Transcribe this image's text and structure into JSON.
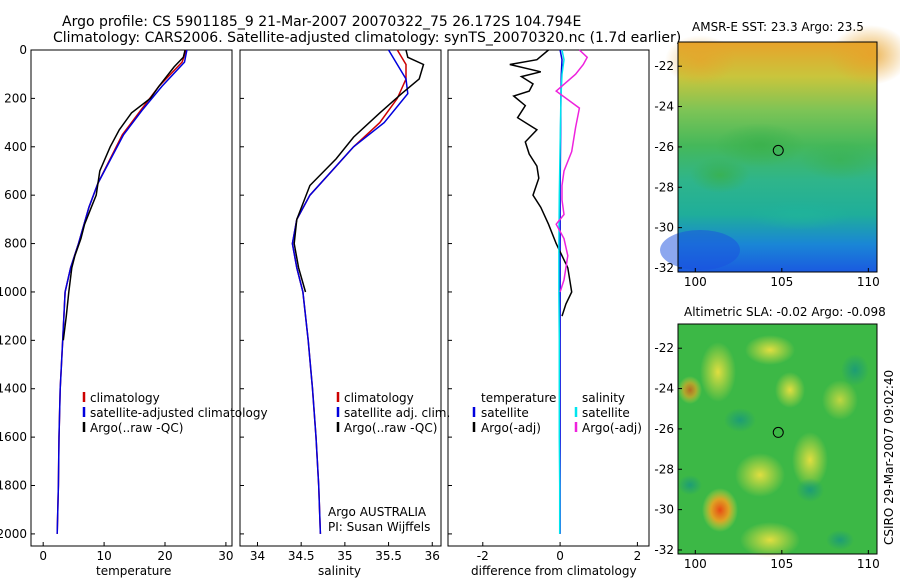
{
  "header": {
    "title_line1": "Argo profile: CS 5901185_9 21-Mar-2007 20070322_75 26.172S 104.794E",
    "title_line2": "Climatology: CARS2006. Satellite-adjusted climatology: synTS_20070320.nc (1.7d earlier)"
  },
  "credit": "CSIRO 29-Mar-2007 09:02:40",
  "colors": {
    "black": "#000000",
    "red": "#cc0000",
    "blue": "#0000dd",
    "cyan": "#00e5ee",
    "magenta": "#ee22dd"
  },
  "chart_data": [
    {
      "type": "line",
      "xlabel": "temperature",
      "xlim": [
        -2,
        31
      ],
      "ylim": [
        2050,
        0
      ],
      "xticks": [
        0,
        10,
        20,
        30
      ],
      "yticks": [
        0,
        200,
        400,
        600,
        800,
        1000,
        1200,
        1400,
        1600,
        1800,
        2000
      ],
      "legend": [
        "climatology",
        "satellite-adjusted climatology",
        "Argo(..raw -QC)"
      ],
      "series": [
        {
          "name": "climatology",
          "color": "#cc0000",
          "x": [
            23.5,
            22.8,
            19,
            16,
            13,
            11,
            9,
            7.5,
            5.8,
            4.5,
            3.6,
            3.2,
            2.8,
            2.6,
            2.5,
            2.3
          ],
          "y": [
            0,
            50,
            150,
            250,
            350,
            450,
            550,
            650,
            800,
            900,
            1000,
            1200,
            1400,
            1600,
            1800,
            2000
          ]
        },
        {
          "name": "satellite-adjusted climatology",
          "color": "#0000dd",
          "x": [
            23.6,
            23.2,
            19.5,
            16.2,
            13.2,
            11.1,
            9,
            7.5,
            5.8,
            4.5,
            3.6,
            3.2,
            2.8,
            2.6,
            2.5,
            2.3
          ],
          "y": [
            0,
            50,
            150,
            250,
            350,
            450,
            550,
            650,
            800,
            900,
            1000,
            1200,
            1400,
            1600,
            1800,
            2000
          ]
        },
        {
          "name": "Argo(..raw -QC)",
          "color": "#000000",
          "x": [
            23.3,
            23.0,
            21.5,
            19,
            17.6,
            14.5,
            12.5,
            11,
            9.3,
            8.7,
            7.9,
            6.8,
            6.2,
            5.2,
            4.7,
            4.2,
            3.8,
            3.3
          ],
          "y": [
            0,
            30,
            70,
            150,
            200,
            260,
            330,
            400,
            500,
            600,
            650,
            720,
            780,
            850,
            900,
            1000,
            1100,
            1200
          ]
        }
      ]
    },
    {
      "type": "line",
      "xlabel": "salinity",
      "xlim": [
        33.8,
        36.1
      ],
      "ylim": [
        2050,
        0
      ],
      "xticks": [
        34,
        34.5,
        35,
        35.5,
        36
      ],
      "legend": [
        "climatology",
        "satellite adj. clim.",
        "Argo(..raw -QC)"
      ],
      "annotation": [
        "Argo AUSTRALIA",
        "PI: Susan Wijffels"
      ],
      "series": [
        {
          "name": "climatology",
          "color": "#cc0000",
          "x": [
            35.6,
            35.7,
            35.7,
            35.6,
            35.4,
            35.1,
            34.85,
            34.6,
            34.45,
            34.4,
            34.45,
            34.52,
            34.58,
            34.63,
            34.67,
            34.7,
            34.72
          ],
          "y": [
            0,
            60,
            120,
            200,
            300,
            400,
            500,
            600,
            700,
            800,
            900,
            1000,
            1200,
            1400,
            1600,
            1800,
            2000
          ]
        },
        {
          "name": "satellite adj. clim.",
          "color": "#0000dd",
          "x": [
            35.5,
            35.6,
            35.7,
            35.72,
            35.45,
            35.1,
            34.85,
            34.6,
            34.45,
            34.4,
            34.45,
            34.52,
            34.58,
            34.63,
            34.67,
            34.7,
            34.72
          ],
          "y": [
            0,
            60,
            120,
            180,
            300,
            400,
            500,
            600,
            700,
            800,
            900,
            1000,
            1200,
            1400,
            1600,
            1800,
            2000
          ]
        },
        {
          "name": "Argo(..raw -QC)",
          "color": "#000000",
          "x": [
            35.7,
            35.72,
            35.9,
            35.85,
            35.65,
            35.4,
            35.1,
            34.9,
            34.6,
            34.45,
            34.42,
            34.47,
            34.55
          ],
          "y": [
            0,
            30,
            60,
            120,
            180,
            260,
            360,
            450,
            560,
            700,
            800,
            900,
            1000
          ]
        }
      ]
    },
    {
      "type": "line",
      "xlabel": "difference from climatology",
      "xlim": [
        -2.9,
        2.3
      ],
      "ylim": [
        2050,
        0
      ],
      "xticks": [
        -2,
        0,
        2
      ],
      "legend": [
        "temperature",
        "satellite",
        "Argo(-adj)",
        "salinity",
        "satellite",
        "Argo(-adj)"
      ],
      "series": [
        {
          "name": "satellite",
          "color": "#0000dd",
          "x": [
            0,
            0.05,
            0.03,
            0.02,
            0.01,
            0,
            0,
            0,
            0,
            0,
            0
          ],
          "y": [
            0,
            40,
            100,
            200,
            400,
            600,
            800,
            1000,
            1400,
            1800,
            2000
          ]
        },
        {
          "name": "Argo(-adj)",
          "color": "#000000",
          "x": [
            -0.3,
            -0.6,
            -1.3,
            -0.5,
            -1.0,
            -0.7,
            -0.8,
            -1.2,
            -0.9,
            -1.1,
            -0.6,
            -0.9,
            -0.8,
            -0.6,
            -0.55,
            -0.7,
            -0.5,
            -0.3,
            -0.1,
            0.2,
            0.3,
            0.15,
            0.05
          ],
          "y": [
            0,
            40,
            60,
            90,
            110,
            140,
            170,
            190,
            230,
            280,
            330,
            380,
            430,
            480,
            530,
            600,
            650,
            720,
            800,
            900,
            1000,
            1050,
            1100
          ]
        },
        {
          "name": "salinity satellite",
          "color": "#00e5ee",
          "x": [
            0.05,
            0.1,
            0.05,
            0.02,
            0,
            -0.02,
            -0.03,
            -0.03,
            -0.02,
            -0.02,
            -0.01,
            -0.01
          ],
          "y": [
            0,
            40,
            100,
            200,
            400,
            600,
            800,
            1000,
            1200,
            1600,
            1800,
            2000
          ]
        },
        {
          "name": "salinity Argo(-adj)",
          "color": "#ee22dd",
          "x": [
            0.5,
            0.7,
            0.6,
            0.4,
            -0.1,
            0.5,
            0.4,
            0.3,
            0.1,
            0.05,
            0.05,
            0.1,
            -0.1,
            0.1,
            0.2,
            0.1,
            0
          ],
          "y": [
            0,
            30,
            60,
            100,
            170,
            240,
            320,
            420,
            500,
            560,
            620,
            680,
            720,
            780,
            850,
            950,
            1000
          ]
        }
      ]
    },
    {
      "type": "heatmap",
      "title": "AMSR-E SST: 23.3 Argo: 23.5",
      "xlim": [
        99,
        110.5
      ],
      "ylim": [
        -32.2,
        -20.8
      ],
      "xticks": [
        100,
        105,
        110
      ],
      "yticks": [
        -22,
        -24,
        -26,
        -28,
        -30,
        -32
      ],
      "marker": {
        "lon": 104.794,
        "lat": -26.172
      }
    },
    {
      "type": "heatmap",
      "title": "Altimetric SLA: -0.02 Argo: -0.098",
      "xlim": [
        99,
        110.5
      ],
      "ylim": [
        -32.2,
        -20.8
      ],
      "xticks": [
        100,
        105,
        110
      ],
      "yticks": [
        -22,
        -24,
        -26,
        -28,
        -30,
        -32
      ],
      "marker": {
        "lon": 104.794,
        "lat": -26.172
      }
    }
  ]
}
